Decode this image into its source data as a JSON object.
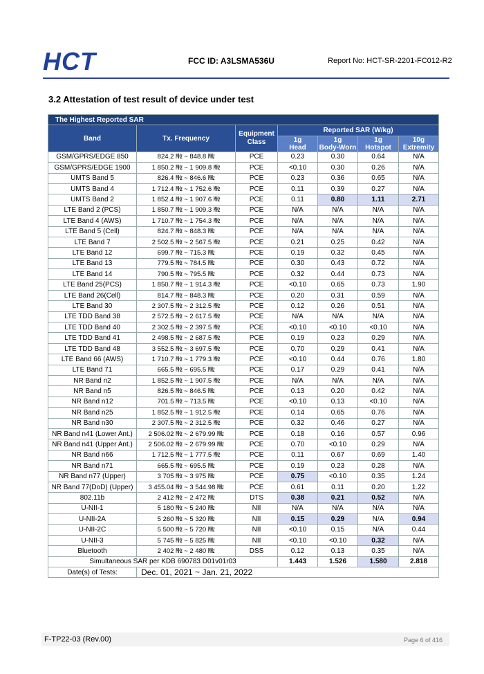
{
  "header": {
    "logo": "HCT",
    "fcc_id": "FCC ID: A3LSMA536U",
    "report_no": "Report No: HCT-SR-2201-FC012-R2"
  },
  "section_title": "3.2 Attestation of test result of device under test",
  "table": {
    "caption": "The Highest Reported SAR",
    "headers": {
      "band": "Band",
      "frequency": "Tx. Frequency",
      "equipment": "Equipment Class",
      "reported": "Reported SAR (W/kg)",
      "sub": [
        [
          "1g",
          "Head"
        ],
        [
          "1g",
          "Body-Worn"
        ],
        [
          "1g",
          "Hotspot"
        ],
        [
          "10g",
          "Extremity"
        ]
      ]
    },
    "rows": [
      [
        "GSM/GPRS/EDGE 850",
        "824.2 ㎒ ~ 848.8 ㎒",
        "PCE",
        "0.23",
        "0.30",
        "0.64",
        "N/A"
      ],
      [
        "GSM/GPRS/EDGE 1900",
        "1 850.2 ㎒ ~ 1 909.8 ㎒",
        "PCE",
        "<0.10",
        "0.30",
        "0.26",
        "N/A"
      ],
      [
        "UMTS Band 5",
        "826.4 ㎒ ~ 846.6 ㎒",
        "PCE",
        "0.23",
        "0.36",
        "0.65",
        "N/A"
      ],
      [
        "UMTS Band 4",
        "1 712.4 ㎒ ~ 1 752.6 ㎒",
        "PCE",
        "0.11",
        "0.39",
        "0.27",
        "N/A"
      ],
      [
        "UMTS Band 2",
        "1 852.4 ㎒ ~ 1 907.6 ㎒",
        "PCE",
        "0.11",
        "0.80",
        "1.11",
        "2.71"
      ],
      [
        "LTE Band 2 (PCS)",
        "1 850.7 ㎒ ~ 1 909.3 ㎒",
        "PCE",
        "N/A",
        "N/A",
        "N/A",
        "N/A"
      ],
      [
        "LTE Band 4 (AWS)",
        "1 710.7 ㎒ ~ 1 754.3 ㎒",
        "PCE",
        "N/A",
        "N/A",
        "N/A",
        "N/A"
      ],
      [
        "LTE Band 5 (Cell)",
        "824.7 ㎒ ~ 848.3 ㎒",
        "PCE",
        "N/A",
        "N/A",
        "N/A",
        "N/A"
      ],
      [
        "LTE Band 7",
        "2 502.5 ㎒ ~ 2 567.5 ㎒",
        "PCE",
        "0.21",
        "0.25",
        "0.42",
        "N/A"
      ],
      [
        "LTE Band 12",
        "699.7 ㎒ ~ 715.3 ㎒",
        "PCE",
        "0.19",
        "0.32",
        "0.45",
        "N/A"
      ],
      [
        "LTE Band 13",
        "779.5 ㎒ ~ 784.5 ㎒",
        "PCE",
        "0.30",
        "0.43",
        "0.72",
        "N/A"
      ],
      [
        "LTE Band 14",
        "790.5 ㎒ ~ 795.5 ㎒",
        "PCE",
        "0.32",
        "0.44",
        "0.73",
        "N/A"
      ],
      [
        "LTE Band 25(PCS)",
        "1 850.7 ㎒ ~ 1 914.3 ㎒",
        "PCE",
        "<0.10",
        "0.65",
        "0.73",
        "1.90"
      ],
      [
        "LTE Band 26(Cell)",
        "814.7 ㎒ ~ 848.3 ㎒",
        "PCE",
        "0.20",
        "0.31",
        "0.59",
        "N/A"
      ],
      [
        "LTE Band 30",
        "2 307.5 ㎒ ~ 2 312.5 ㎒",
        "PCE",
        "0.12",
        "0.26",
        "0.51",
        "N/A"
      ],
      [
        "LTE TDD Band 38",
        "2 572.5 ㎒ ~ 2 617.5 ㎒",
        "PCE",
        "N/A",
        "N/A",
        "N/A",
        "N/A"
      ],
      [
        "LTE TDD Band 40",
        "2 302.5 ㎒ ~ 2 397.5 ㎒",
        "PCE",
        "<0.10",
        "<0.10",
        "<0.10",
        "N/A"
      ],
      [
        "LTE TDD Band 41",
        "2 498.5 ㎒ ~ 2 687.5 ㎒",
        "PCE",
        "0.19",
        "0.23",
        "0.29",
        "N/A"
      ],
      [
        "LTE TDD Band 48",
        "3 552.5 ㎒ ~ 3 697.5 ㎒",
        "PCE",
        "0.70",
        "0.29",
        "0.41",
        "N/A"
      ],
      [
        "LTE Band 66 (AWS)",
        "1 710.7 ㎒ ~ 1 779.3 ㎒",
        "PCE",
        "<0.10",
        "0.44",
        "0.76",
        "1.80"
      ],
      [
        "LTE Band 71",
        "665.5 ㎒ ~ 695.5 ㎒",
        "PCE",
        "0.17",
        "0.29",
        "0.41",
        "N/A"
      ],
      [
        "NR Band n2",
        "1 852.5 ㎒ ~ 1 907.5 ㎒",
        "PCE",
        "N/A",
        "N/A",
        "N/A",
        "N/A"
      ],
      [
        "NR Band n5",
        "826.5 ㎒ ~ 846.5 ㎒",
        "PCE",
        "0.13",
        "0.20",
        "0.42",
        "N/A"
      ],
      [
        "NR Band n12",
        "701.5 ㎒ ~ 713.5 ㎒",
        "PCE",
        "<0.10",
        "0.13",
        "<0.10",
        "N/A"
      ],
      [
        "NR Band n25",
        "1 852.5 ㎒ ~ 1 912.5 ㎒",
        "PCE",
        "0.14",
        "0.65",
        "0.76",
        "N/A"
      ],
      [
        "NR Band n30",
        "2 307.5 ㎒ ~ 2 312.5 ㎒",
        "PCE",
        "0.32",
        "0.46",
        "0.27",
        "N/A"
      ],
      [
        "NR Band n41 (Lower Ant.)",
        "2 506.02 ㎒ ~ 2 679.99 ㎒",
        "PCE",
        "0.18",
        "0.16",
        "0.57",
        "0.96"
      ],
      [
        "NR Band n41 (Upper Ant.)",
        "2 506.02 ㎒ ~ 2 679.99 ㎒",
        "PCE",
        "0.70",
        "<0.10",
        "0.29",
        "N/A"
      ],
      [
        "NR Band n66",
        "1 712.5 ㎒ ~ 1 777.5 ㎒",
        "PCE",
        "0.11",
        "0.67",
        "0.69",
        "1.40"
      ],
      [
        "NR Band n71",
        "665.5 ㎒ ~ 695.5 ㎒",
        "PCE",
        "0.19",
        "0.23",
        "0.28",
        "N/A"
      ],
      [
        "NR Band n77 (Upper)",
        "3 705 ㎒ ~ 3 975 ㎒",
        "PCE",
        "0.75",
        "<0.10",
        "0.35",
        "1.24"
      ],
      [
        "NR Band 77(DoD) (Upper)",
        "3 455.04 ㎒ ~ 3 544.98 ㎒",
        "PCE",
        "0.61",
        "0.11",
        "0.20",
        "1.22"
      ],
      [
        "802.11b",
        "2 412 ㎒ ~ 2 472 ㎒",
        "DTS",
        "0.38",
        "0.21",
        "0.52",
        "N/A"
      ],
      [
        "U-NII-1",
        "5 180 ㎒ ~ 5 240 ㎒",
        "NII",
        "N/A",
        "N/A",
        "N/A",
        "N/A"
      ],
      [
        "U-NII-2A",
        "5 260 ㎒ ~ 5 320 ㎒",
        "NII",
        "0.15",
        "0.29",
        "N/A",
        "0.94"
      ],
      [
        "U-NII-2C",
        "5 500 ㎒ ~ 5 720 ㎒",
        "NII",
        "<0.10",
        "0.15",
        "N/A",
        "0.44"
      ],
      [
        "U-NII-3",
        "5 745 ㎒ ~ 5 825 ㎒",
        "NII",
        "<0.10",
        "<0.10",
        "0.32",
        "N/A"
      ],
      [
        "Bluetooth",
        "2 402 ㎒ ~ 2 480 ㎒",
        "DSS",
        "0.12",
        "0.13",
        "0.35",
        "N/A"
      ]
    ],
    "highlighted": [
      [
        4,
        4
      ],
      [
        4,
        5
      ],
      [
        4,
        6
      ],
      [
        30,
        3
      ],
      [
        32,
        3
      ],
      [
        32,
        4
      ],
      [
        32,
        5
      ],
      [
        34,
        3
      ],
      [
        34,
        4
      ],
      [
        34,
        6
      ],
      [
        36,
        5
      ]
    ],
    "simultaneous": {
      "label": "Simultaneous SAR per KDB 690783 D01v01r03",
      "values": [
        "1.443",
        "1.526",
        "1.580",
        "2.818"
      ],
      "highlighted": [
        2
      ]
    },
    "dates": {
      "label": "Date(s) of Tests:",
      "value": "Dec. 01, 2021 ~ Jan. 21, 2022"
    }
  },
  "footer": {
    "form": "F-TP22-03 (Rev.00)",
    "page": "Page 6 of 416"
  }
}
